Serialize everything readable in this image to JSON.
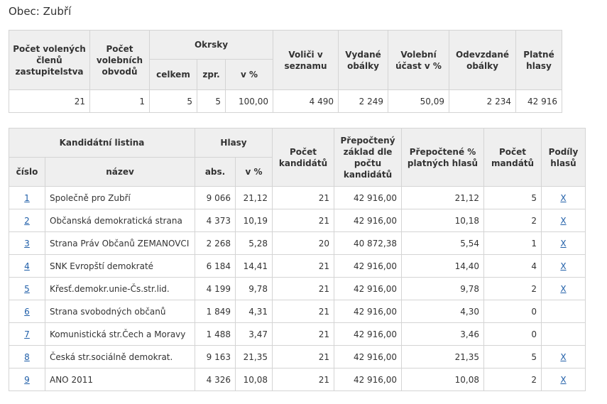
{
  "heading": "Obec: Zubří",
  "summary": {
    "headers": {
      "members": "Počet volených členů zastupitelstva",
      "districts_count": "Počet volebních obvodů",
      "precincts": "Okrsky",
      "precincts_total": "celkem",
      "precincts_processed": "zpr.",
      "precincts_pct": "v %",
      "voters": "Voliči v seznamu",
      "envelopes_issued": "Vydané obálky",
      "turnout": "Volební účast v %",
      "envelopes_returned": "Odevzdané obálky",
      "valid_votes": "Platné hlasy"
    },
    "values": {
      "members": "21",
      "districts_count": "1",
      "precincts_total": "5",
      "precincts_processed": "5",
      "precincts_pct": "100,00",
      "voters": "4 490",
      "envelopes_issued": "2 249",
      "turnout": "50,09",
      "envelopes_returned": "2 234",
      "valid_votes": "42 916"
    }
  },
  "results": {
    "headers": {
      "list": "Kandidátní listina",
      "number": "číslo",
      "name": "název",
      "votes": "Hlasy",
      "abs": "abs.",
      "pct": "v %",
      "candidates": "Počet kandidátů",
      "recalc_base": "Přepočtený základ dle počtu kandidátů",
      "recalc_pct": "Přepočtené % platných hlasů",
      "mandates": "Počet mandátů",
      "shares": "Podíly hlasů"
    },
    "rows": [
      {
        "num": "1",
        "name": "Společně pro Zubří",
        "abs": "9 066",
        "pct": "21,12",
        "candidates": "21",
        "base": "42 916,00",
        "recalc": "21,12",
        "mandates": "5",
        "share": "X"
      },
      {
        "num": "2",
        "name": "Občanská demokratická strana",
        "abs": "4 373",
        "pct": "10,19",
        "candidates": "21",
        "base": "42 916,00",
        "recalc": "10,18",
        "mandates": "2",
        "share": "X"
      },
      {
        "num": "3",
        "name": "Strana Práv Občanů ZEMANOVCI",
        "abs": "2 268",
        "pct": "5,28",
        "candidates": "20",
        "base": "40 872,38",
        "recalc": "5,54",
        "mandates": "1",
        "share": "X"
      },
      {
        "num": "4",
        "name": "SNK Evropští demokraté",
        "abs": "6 184",
        "pct": "14,41",
        "candidates": "21",
        "base": "42 916,00",
        "recalc": "14,40",
        "mandates": "4",
        "share": "X"
      },
      {
        "num": "5",
        "name": "Křesť.demokr.unie-Čs.str.lid.",
        "abs": "4 199",
        "pct": "9,78",
        "candidates": "21",
        "base": "42 916,00",
        "recalc": "9,78",
        "mandates": "2",
        "share": "X"
      },
      {
        "num": "6",
        "name": "Strana svobodných občanů",
        "abs": "1 849",
        "pct": "4,31",
        "candidates": "21",
        "base": "42 916,00",
        "recalc": "4,30",
        "mandates": "0",
        "share": ""
      },
      {
        "num": "7",
        "name": "Komunistická str.Čech a Moravy",
        "abs": "1 488",
        "pct": "3,47",
        "candidates": "21",
        "base": "42 916,00",
        "recalc": "3,46",
        "mandates": "0",
        "share": ""
      },
      {
        "num": "8",
        "name": "Česká str.sociálně demokrat.",
        "abs": "9 163",
        "pct": "21,35",
        "candidates": "21",
        "base": "42 916,00",
        "recalc": "21,35",
        "mandates": "5",
        "share": "X"
      },
      {
        "num": "9",
        "name": "ANO 2011",
        "abs": "4 326",
        "pct": "10,08",
        "candidates": "21",
        "base": "42 916,00",
        "recalc": "10,08",
        "mandates": "2",
        "share": "X"
      }
    ]
  }
}
